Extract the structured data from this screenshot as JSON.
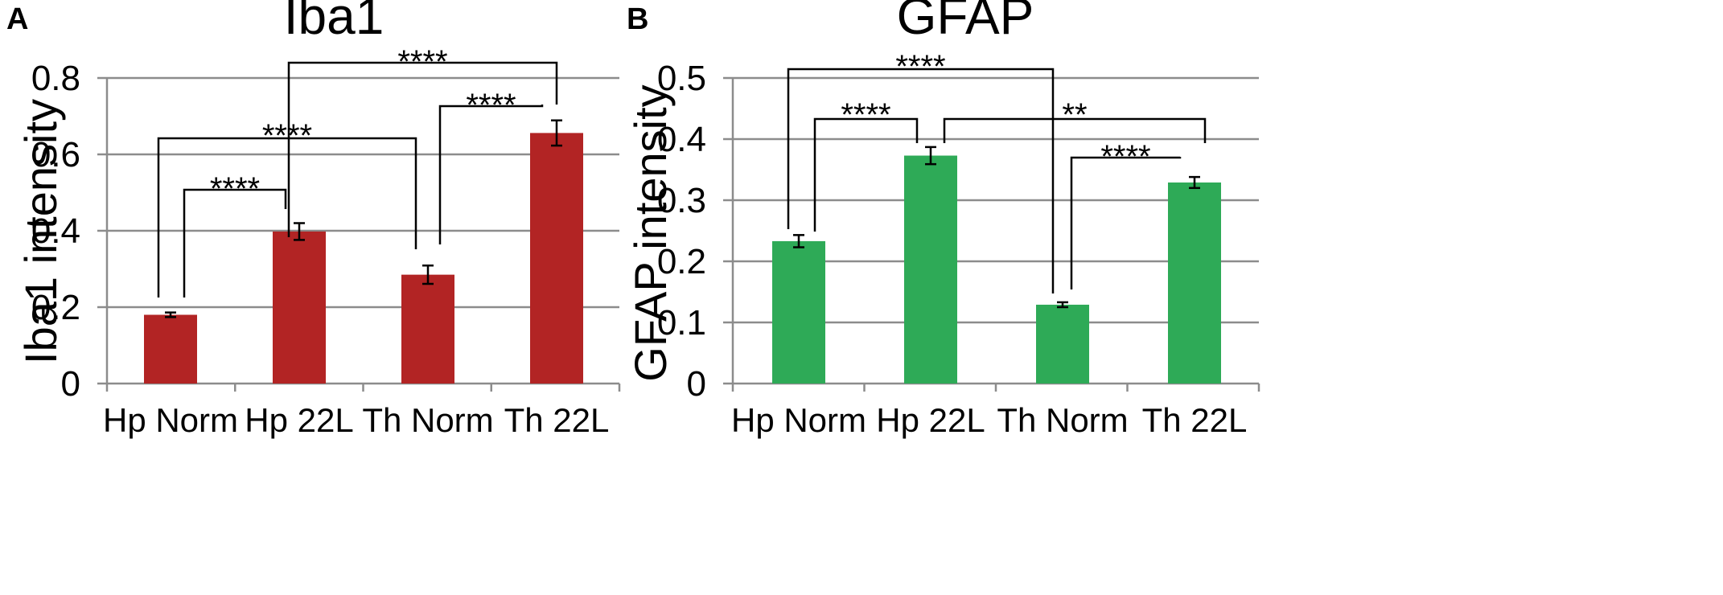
{
  "chart_data": [
    {
      "type": "bar",
      "panel": "A",
      "title": "Iba1",
      "xlabel": "",
      "ylabel": "Iba1 intensity",
      "ylim": [
        0,
        0.8
      ],
      "yticks": [
        0,
        0.2,
        0.4,
        0.6,
        0.8
      ],
      "ytick_labels": [
        "0",
        "0.2",
        "0.4",
        "0.6",
        "0.8"
      ],
      "categories": [
        "Hp Norm",
        "Hp 22L",
        "Th Norm",
        "Th 22L"
      ],
      "values": [
        0.18,
        0.398,
        0.285,
        0.656
      ],
      "errors": [
        0.006,
        0.022,
        0.024,
        0.033
      ],
      "bar_color": "#b22424",
      "grid": true,
      "comparisons": [
        {
          "from": 0,
          "to": 1,
          "label": "****"
        },
        {
          "from": 0,
          "to": 2,
          "label": "****"
        },
        {
          "from": 2,
          "to": 3,
          "label": "****"
        },
        {
          "from": 1,
          "to": 3,
          "label": "****"
        }
      ]
    },
    {
      "type": "bar",
      "panel": "B",
      "title": "GFAP",
      "xlabel": "",
      "ylabel": "GFAP intensity",
      "ylim": [
        0,
        0.5
      ],
      "yticks": [
        0,
        0.1,
        0.2,
        0.3,
        0.4,
        0.5
      ],
      "ytick_labels": [
        "0",
        "0.1",
        "0.2",
        "0.3",
        "0.4",
        "0.5"
      ],
      "categories": [
        "Hp Norm",
        "Hp 22L",
        "Th Norm",
        "Th 22L"
      ],
      "values": [
        0.233,
        0.373,
        0.129,
        0.329
      ],
      "errors": [
        0.01,
        0.014,
        0.004,
        0.009
      ],
      "bar_color": "#2eaa57",
      "grid": true,
      "comparisons": [
        {
          "from": 0,
          "to": 1,
          "label": "****"
        },
        {
          "from": 0,
          "to": 2,
          "label": "****"
        },
        {
          "from": 1,
          "to": 3,
          "label": "**"
        },
        {
          "from": 2,
          "to": 3,
          "label": "****"
        }
      ]
    }
  ]
}
